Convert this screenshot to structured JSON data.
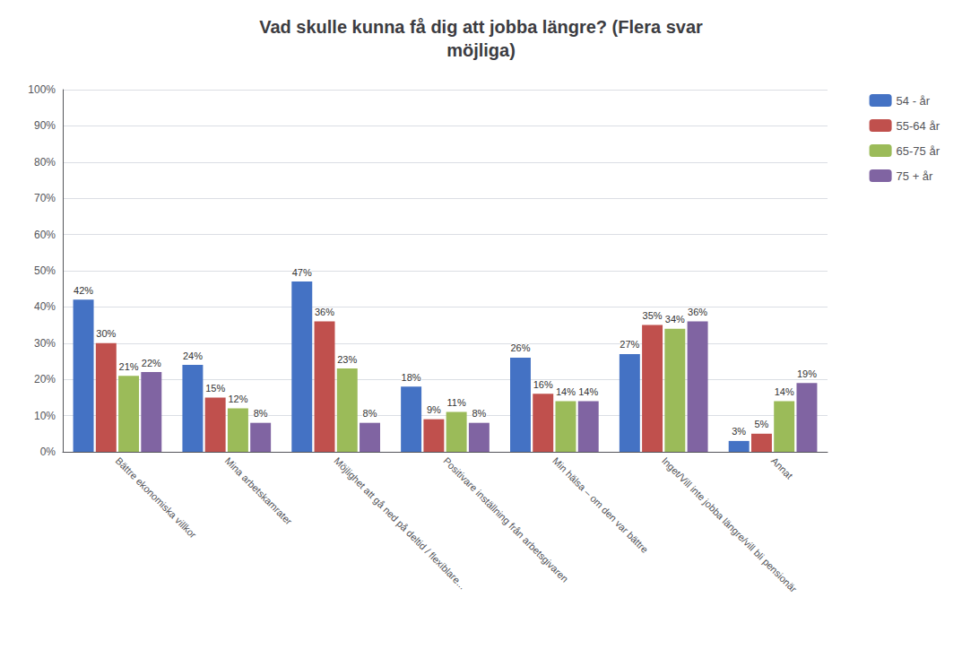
{
  "chart_data": {
    "type": "bar",
    "title": "Vad skulle kunna få dig att jobba längre? (Flera svar\nmöjliga)",
    "categories": [
      "Bättre ekonomiska villkor",
      "Mina arbetskamrater",
      "Möjlighet att gå ned på deltid / flexiblare...",
      "Positivare inställning från arbetsgivaren",
      "Min hälsa – om den var bättre",
      "Inget/Vill inte jobba längre/vill bli pensionär",
      "Annat"
    ],
    "series": [
      {
        "name": "54 - år",
        "color": "#4472C4",
        "values": [
          42,
          24,
          47,
          18,
          26,
          27,
          3
        ],
        "value_labels": [
          "42%",
          "24%",
          "47%",
          "18%",
          "26%",
          "27%",
          "3%"
        ]
      },
      {
        "name": "55-64 år",
        "color": "#C0504D",
        "values": [
          30,
          15,
          36,
          9,
          16,
          35,
          5
        ],
        "value_labels": [
          "30%",
          "15%",
          "36%",
          "9%",
          "16%",
          "35%",
          "5%"
        ]
      },
      {
        "name": "65-75 år",
        "color": "#9BBB59",
        "values": [
          21,
          12,
          23,
          11,
          14,
          34,
          14
        ],
        "value_labels": [
          "21%",
          "12%",
          "23%",
          "11%",
          "14%",
          "34%",
          "14%"
        ]
      },
      {
        "name": "75 + år",
        "color": "#8064A2",
        "values": [
          22,
          8,
          8,
          8,
          14,
          36,
          19
        ],
        "value_labels": [
          "22%",
          "8%",
          "8%",
          "8%",
          "14%",
          "36%",
          "19%"
        ]
      }
    ],
    "ylim": [
      0,
      100
    ],
    "yticks": [
      {
        "value": 0,
        "label": "0%"
      },
      {
        "value": 10,
        "label": "10%"
      },
      {
        "value": 20,
        "label": "20%"
      },
      {
        "value": 30,
        "label": "30%"
      },
      {
        "value": 40,
        "label": "40%"
      },
      {
        "value": 50,
        "label": "50%"
      },
      {
        "value": 60,
        "label": "60%"
      },
      {
        "value": 70,
        "label": "70%"
      },
      {
        "value": 80,
        "label": "80%"
      },
      {
        "value": 90,
        "label": "90%"
      },
      {
        "value": 100,
        "label": "100%"
      }
    ],
    "grid": true,
    "legend": "right",
    "data_labels": true
  }
}
